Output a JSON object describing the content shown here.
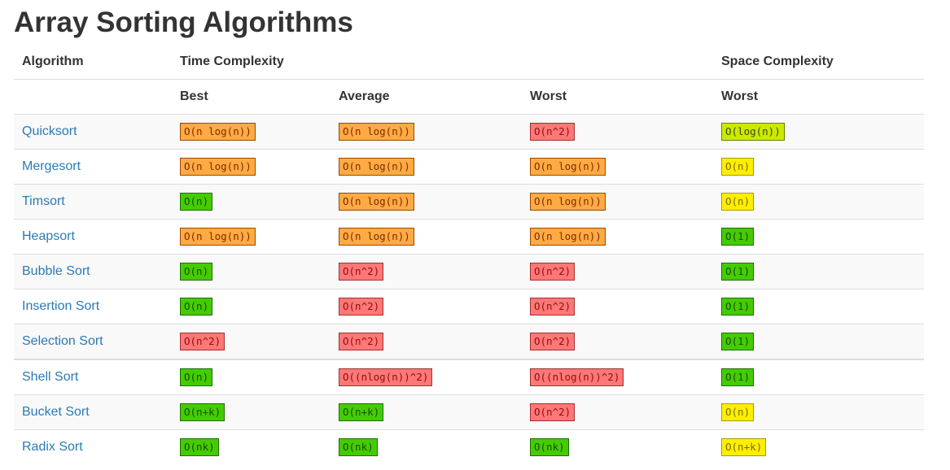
{
  "title": "Array Sorting Algorithms",
  "header": {
    "row1": [
      "Algorithm",
      "Time Complexity",
      "Space Complexity"
    ],
    "row2": [
      "Best",
      "Average",
      "Worst",
      "Worst"
    ]
  },
  "rating_colors": {
    "good": "#44cc00",
    "fair": "#cbea00",
    "okay": "#ffee00",
    "bad": "#ffaa44",
    "worst": "#ff7777"
  },
  "rows": [
    {
      "name": "Quicksort",
      "cells": [
        {
          "text": "O(n log(n))",
          "rating": "bad"
        },
        {
          "text": "O(n log(n))",
          "rating": "bad"
        },
        {
          "text": "O(n^2)",
          "rating": "worst"
        },
        {
          "text": "O(log(n))",
          "rating": "fair"
        }
      ]
    },
    {
      "name": "Mergesort",
      "cells": [
        {
          "text": "O(n log(n))",
          "rating": "bad"
        },
        {
          "text": "O(n log(n))",
          "rating": "bad"
        },
        {
          "text": "O(n log(n))",
          "rating": "bad"
        },
        {
          "text": "O(n)",
          "rating": "okay"
        }
      ]
    },
    {
      "name": "Timsort",
      "cells": [
        {
          "text": "O(n)",
          "rating": "good"
        },
        {
          "text": "O(n log(n))",
          "rating": "bad"
        },
        {
          "text": "O(n log(n))",
          "rating": "bad"
        },
        {
          "text": "O(n)",
          "rating": "okay"
        }
      ]
    },
    {
      "name": "Heapsort",
      "cells": [
        {
          "text": "O(n log(n))",
          "rating": "bad"
        },
        {
          "text": "O(n log(n))",
          "rating": "bad"
        },
        {
          "text": "O(n log(n))",
          "rating": "bad"
        },
        {
          "text": "O(1)",
          "rating": "good"
        }
      ]
    },
    {
      "name": "Bubble Sort",
      "cells": [
        {
          "text": "O(n)",
          "rating": "good"
        },
        {
          "text": "O(n^2)",
          "rating": "worst"
        },
        {
          "text": "O(n^2)",
          "rating": "worst"
        },
        {
          "text": "O(1)",
          "rating": "good"
        }
      ]
    },
    {
      "name": "Insertion Sort",
      "cells": [
        {
          "text": "O(n)",
          "rating": "good"
        },
        {
          "text": "O(n^2)",
          "rating": "worst"
        },
        {
          "text": "O(n^2)",
          "rating": "worst"
        },
        {
          "text": "O(1)",
          "rating": "good"
        }
      ]
    },
    {
      "name": "Selection Sort",
      "cells": [
        {
          "text": "O(n^2)",
          "rating": "worst"
        },
        {
          "text": "O(n^2)",
          "rating": "worst"
        },
        {
          "text": "O(n^2)",
          "rating": "worst"
        },
        {
          "text": "O(1)",
          "rating": "good"
        }
      ]
    },
    {
      "name": "Shell Sort",
      "cells": [
        {
          "text": "O(n)",
          "rating": "good"
        },
        {
          "text": "O((nlog(n))^2)",
          "rating": "worst"
        },
        {
          "text": "O((nlog(n))^2)",
          "rating": "worst"
        },
        {
          "text": "O(1)",
          "rating": "good"
        }
      ]
    },
    {
      "name": "Bucket Sort",
      "cells": [
        {
          "text": "O(n+k)",
          "rating": "good"
        },
        {
          "text": "O(n+k)",
          "rating": "good"
        },
        {
          "text": "O(n^2)",
          "rating": "worst"
        },
        {
          "text": "O(n)",
          "rating": "okay"
        }
      ]
    },
    {
      "name": "Radix Sort",
      "cells": [
        {
          "text": "O(nk)",
          "rating": "good"
        },
        {
          "text": "O(nk)",
          "rating": "good"
        },
        {
          "text": "O(nk)",
          "rating": "good"
        },
        {
          "text": "O(n+k)",
          "rating": "okay"
        }
      ]
    }
  ]
}
